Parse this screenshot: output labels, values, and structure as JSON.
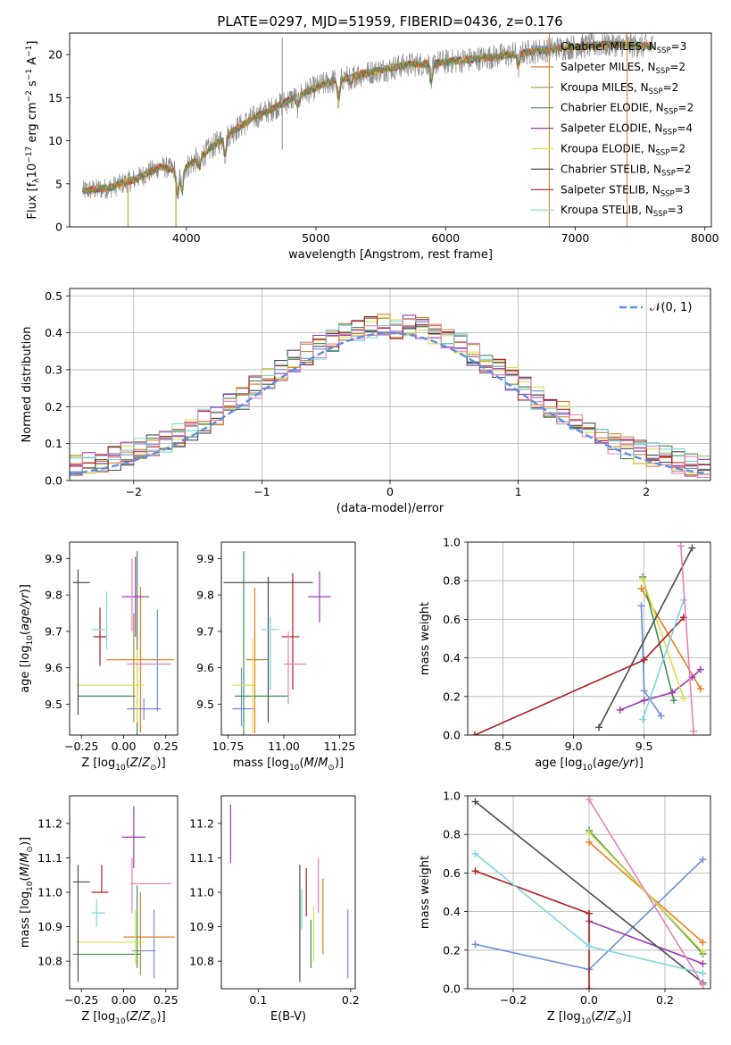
{
  "figure_title": "PLATE=0297, MJD=51959, FIBERID=0436, z=0.176",
  "colors": {
    "Chabrier MILES": "#6b8fd9",
    "Salpeter MILES": "#e87e22",
    "Kroupa MILES": "#b98a3a",
    "Chabrier ELODIE": "#3f8f52",
    "Salpeter ELODIE": "#9a3bb0",
    "Kroupa ELODIE": "#d9e04a",
    "Chabrier STELIB": "#4b4b4b",
    "Salpeter STELIB": "#b01d1d",
    "Kroupa STELIB": "#7ad6e0",
    "pink": "#e681b8",
    "gauss": "#5d8ee0",
    "grid": "#b0b0b0"
  },
  "chart_data": [
    {
      "id": "spectrum",
      "type": "line",
      "title": "PLATE=0297, MJD=51959, FIBERID=0436, z=0.176",
      "xlabel": "wavelength [Angstrom, rest frame]",
      "ylabel": "Flux [fλ10⁻¹⁷ erg cm⁻² s⁻¹ A⁻¹]",
      "xlim": [
        3100,
        8050
      ],
      "ylim": [
        0,
        22.5
      ],
      "xticks": [
        4000,
        5000,
        6000,
        7000,
        8000
      ],
      "yticks": [
        0,
        5,
        10,
        15,
        20
      ],
      "grid": false,
      "legend_position": "top-right",
      "legend": [
        {
          "name": "Chabrier MILES, N_SSP=3",
          "label": "Chabrier MILES, N",
          "sub": "SSP",
          "tail": "=3"
        },
        {
          "name": "Salpeter MILES, N_SSP=2",
          "label": "Salpeter MILES, N",
          "sub": "SSP",
          "tail": "=2"
        },
        {
          "name": "Kroupa MILES, N_SSP=2",
          "label": "Kroupa MILES, N",
          "sub": "SSP",
          "tail": "=2"
        },
        {
          "name": "Chabrier ELODIE, N_SSP=2",
          "label": "Chabrier ELODIE, N",
          "sub": "SSP",
          "tail": "=2"
        },
        {
          "name": "Salpeter ELODIE, N_SSP=4",
          "label": "Salpeter ELODIE, N",
          "sub": "SSP",
          "tail": "=4"
        },
        {
          "name": "Kroupa ELODIE, N_SSP=2",
          "label": "Kroupa ELODIE, N",
          "sub": "SSP",
          "tail": "=2"
        },
        {
          "name": "Chabrier STELIB, N_SSP=2",
          "label": "Chabrier STELIB, N",
          "sub": "SSP",
          "tail": "=2"
        },
        {
          "name": "Salpeter STELIB, N_SSP=3",
          "label": "Salpeter STELIB, N",
          "sub": "SSP",
          "tail": "=3"
        },
        {
          "name": "Kroupa STELIB, N_SSP=3",
          "label": "Kroupa STELIB, N",
          "sub": "SSP",
          "tail": "=3"
        }
      ],
      "continuum_x": [
        3200,
        3400,
        3600,
        3800,
        3950,
        4100,
        4300,
        4500,
        4700,
        4900,
        5100,
        5300,
        5500,
        5700,
        5900,
        6100,
        6300,
        6500,
        6700,
        6900,
        7100,
        7300,
        7500
      ],
      "continuum_y": [
        4.2,
        4.5,
        5.5,
        7.0,
        6.5,
        8.0,
        10.5,
        12.5,
        14.0,
        15.5,
        16.8,
        17.6,
        18.2,
        18.8,
        19.0,
        19.3,
        19.6,
        20.0,
        20.4,
        20.8,
        21.0,
        21.2,
        21.0
      ]
    },
    {
      "id": "residuals",
      "type": "bar",
      "xlabel": "(data-model)/error",
      "ylabel": "Normed distribution",
      "xlim": [
        -2.5,
        2.5
      ],
      "ylim": [
        0,
        0.52
      ],
      "xticks": [
        -2,
        -1,
        0,
        1,
        2
      ],
      "yticks": [
        0.0,
        0.1,
        0.2,
        0.3,
        0.4,
        0.5
      ],
      "grid": true,
      "legend_position": "top-right",
      "reference_curve": "𝒩(0, 1)",
      "bin_width": 0.1,
      "note": "step histograms of residuals for each fit, approximately standard normal"
    },
    {
      "id": "age_vs_Z",
      "type": "scatter",
      "xlabel": "Z [log10(Z/Z⊙)]",
      "ylabel": "age  [log10(age/yr)]",
      "xlim": [
        -0.32,
        0.32
      ],
      "ylim": [
        9.415,
        9.945
      ],
      "xticks": [
        -0.25,
        0.0,
        0.25
      ],
      "yticks": [
        9.5,
        9.6,
        9.7,
        9.8,
        9.9
      ],
      "grid": false,
      "points": [
        {
          "series": "Chabrier MILES",
          "x": 0.12,
          "xerr": 0.1,
          "y": 9.487,
          "yerr": 0.03
        },
        {
          "series": "Chabrier MILES",
          "x": 0.2,
          "xerr": 0.0,
          "y": 9.62,
          "yerr": 0.14
        },
        {
          "series": "Salpeter MILES",
          "x": 0.1,
          "xerr": 0.2,
          "y": 9.622,
          "yerr": 0.2
        },
        {
          "series": "Kroupa MILES",
          "x": 0.06,
          "xerr": 0.0,
          "y": 9.6,
          "yerr": 0.15
        },
        {
          "series": "Chabrier ELODIE",
          "x": -0.1,
          "xerr": 0.17,
          "y": 9.522,
          "yerr": 0.0
        },
        {
          "series": "Chabrier ELODIE",
          "x": 0.08,
          "xerr": 0.0,
          "y": 9.65,
          "yerr": 0.27
        },
        {
          "series": "Salpeter ELODIE",
          "x": 0.07,
          "xerr": 0.08,
          "y": 9.795,
          "yerr": 0.11
        },
        {
          "series": "Kroupa ELODIE",
          "x": -0.08,
          "xerr": 0.2,
          "y": 9.552,
          "yerr": 0.0
        },
        {
          "series": "Kroupa ELODIE",
          "x": 0.08,
          "xerr": 0.0,
          "y": 9.55,
          "yerr": 0.1
        },
        {
          "series": "Chabrier STELIB",
          "x": -0.25,
          "xerr": 0.05,
          "y": 9.834,
          "yerr": 0.0
        },
        {
          "series": "Chabrier STELIB",
          "x": -0.27,
          "xerr": 0.0,
          "y": 9.67,
          "yerr": 0.2
        },
        {
          "series": "Salpeter STELIB",
          "x": -0.14,
          "xerr": 0.04,
          "y": 9.685,
          "yerr": 0.08
        },
        {
          "series": "Kroupa STELIB",
          "x": -0.15,
          "xerr": 0.04,
          "y": 9.705,
          "yerr": 0.0
        },
        {
          "series": "Kroupa STELIB",
          "x": -0.1,
          "xerr": 0.0,
          "y": 9.73,
          "yerr": 0.08
        },
        {
          "series": "pink",
          "x": 0.15,
          "xerr": 0.13,
          "y": 9.61,
          "yerr": 0.0
        },
        {
          "series": "pink",
          "x": 0.05,
          "xerr": 0.0,
          "y": 9.8,
          "yerr": 0.1
        }
      ]
    },
    {
      "id": "age_vs_mass",
      "type": "scatter",
      "xlabel": "mass [log10(M/M⊙)]",
      "ylabel": "",
      "xlim": [
        10.72,
        11.32
      ],
      "ylim": [
        9.415,
        9.945
      ],
      "xticks": [
        10.75,
        11.0,
        11.25
      ],
      "yticks": [
        9.5,
        9.6,
        9.7,
        9.8,
        9.9
      ],
      "grid": false,
      "points": [
        {
          "series": "Chabrier MILES",
          "x": 10.82,
          "xerr": 0.05,
          "y": 9.487,
          "yerr": 0.0
        },
        {
          "series": "Chabrier MILES",
          "x": 10.81,
          "xerr": 0.0,
          "y": 9.52,
          "yerr": 0.08
        },
        {
          "series": "Salpeter MILES",
          "x": 10.87,
          "xerr": 0.0,
          "y": 9.62,
          "yerr": 0.2
        },
        {
          "series": "Kroupa MILES",
          "x": 10.88,
          "xerr": 0.05,
          "y": 9.622,
          "yerr": 0.0
        },
        {
          "series": "Chabrier ELODIE",
          "x": 10.82,
          "xerr": 0.0,
          "y": 9.64,
          "yerr": 0.28
        },
        {
          "series": "Chabrier ELODIE",
          "x": 10.9,
          "xerr": 0.12,
          "y": 9.522,
          "yerr": 0.0
        },
        {
          "series": "Salpeter ELODIE",
          "x": 11.16,
          "xerr": 0.05,
          "y": 9.795,
          "yerr": 0.07
        },
        {
          "series": "Kroupa ELODIE",
          "x": 10.86,
          "xerr": 0.0,
          "y": 9.55,
          "yerr": 0.13
        },
        {
          "series": "Kroupa ELODIE",
          "x": 10.82,
          "xerr": 0.05,
          "y": 9.552,
          "yerr": 0.0
        },
        {
          "series": "Chabrier STELIB",
          "x": 10.93,
          "xerr": 0.2,
          "y": 9.834,
          "yerr": 0.0
        },
        {
          "series": "Chabrier STELIB",
          "x": 10.93,
          "xerr": 0.0,
          "y": 9.65,
          "yerr": 0.2
        },
        {
          "series": "Salpeter STELIB",
          "x": 11.03,
          "xerr": 0.04,
          "y": 9.685,
          "yerr": 0.0
        },
        {
          "series": "Salpeter STELIB",
          "x": 11.04,
          "xerr": 0.0,
          "y": 9.7,
          "yerr": 0.16
        },
        {
          "series": "Kroupa STELIB",
          "x": 10.94,
          "xerr": 0.04,
          "y": 9.705,
          "yerr": 0.0
        },
        {
          "series": "Kroupa STELIB",
          "x": 10.94,
          "xerr": 0.0,
          "y": 9.64,
          "yerr": 0.1
        },
        {
          "series": "pink",
          "x": 11.05,
          "xerr": 0.05,
          "y": 9.61,
          "yerr": 0.0
        },
        {
          "series": "pink",
          "x": 11.02,
          "xerr": 0.0,
          "y": 9.6,
          "yerr": 0.1
        }
      ]
    },
    {
      "id": "weight_vs_age",
      "type": "line",
      "xlabel": "age  [log10(age/yr)]",
      "ylabel": "mass weight",
      "xlim": [
        8.25,
        9.97
      ],
      "ylim": [
        0.0,
        1.0
      ],
      "xticks": [
        8.5,
        9.0,
        9.5
      ],
      "yticks": [
        0.0,
        0.2,
        0.4,
        0.6,
        0.8,
        1.0
      ],
      "grid": true,
      "series": [
        {
          "name": "Chabrier MILES",
          "x": [
            9.48,
            9.5,
            9.62
          ],
          "y": [
            0.67,
            0.23,
            0.1
          ]
        },
        {
          "name": "Salpeter MILES",
          "x": [
            9.48,
            9.9
          ],
          "y": [
            0.76,
            0.24
          ]
        },
        {
          "name": "Chabrier ELODIE",
          "x": [
            9.49,
            9.71
          ],
          "y": [
            0.82,
            0.18
          ]
        },
        {
          "name": "Salpeter ELODIE",
          "x": [
            9.33,
            9.5,
            9.7,
            9.84,
            9.9
          ],
          "y": [
            0.13,
            0.18,
            0.22,
            0.3,
            0.34
          ]
        },
        {
          "name": "Kroupa ELODIE",
          "x": [
            9.49,
            9.78
          ],
          "y": [
            0.81,
            0.19
          ]
        },
        {
          "name": "Chabrier STELIB",
          "x": [
            9.18,
            9.84
          ],
          "y": [
            0.04,
            0.97
          ]
        },
        {
          "name": "Salpeter STELIB",
          "x": [
            8.3,
            9.5,
            9.78
          ],
          "y": [
            0.0,
            0.39,
            0.61
          ]
        },
        {
          "name": "Kroupa STELIB",
          "x": [
            9.49,
            9.78
          ],
          "y": [
            0.08,
            0.7
          ]
        },
        {
          "name": "pink",
          "x": [
            9.76,
            9.85
          ],
          "y": [
            0.98,
            0.02
          ]
        }
      ]
    },
    {
      "id": "mass_vs_Z",
      "type": "scatter",
      "xlabel": "Z [log10(Z/Z⊙)]",
      "ylabel": "mass [log10(M/M⊙)]",
      "xlim": [
        -0.32,
        0.32
      ],
      "ylim": [
        10.72,
        11.28
      ],
      "xticks": [
        -0.25,
        0.0,
        0.25
      ],
      "yticks": [
        10.8,
        10.9,
        11.0,
        11.1,
        11.2
      ],
      "grid": false,
      "points": [
        {
          "series": "Chabrier MILES",
          "x": 0.12,
          "xerr": 0.07,
          "y": 10.83,
          "yerr": 0.0
        },
        {
          "series": "Chabrier MILES",
          "x": 0.18,
          "xerr": 0.0,
          "y": 10.85,
          "yerr": 0.1
        },
        {
          "series": "Salpeter MILES",
          "x": 0.15,
          "xerr": 0.15,
          "y": 10.87,
          "yerr": 0.0
        },
        {
          "series": "Kroupa MILES",
          "x": 0.1,
          "xerr": 0.0,
          "y": 10.88,
          "yerr": 0.12
        },
        {
          "series": "Chabrier ELODIE",
          "x": -0.1,
          "xerr": 0.2,
          "y": 10.82,
          "yerr": 0.0
        },
        {
          "series": "Chabrier ELODIE",
          "x": 0.08,
          "xerr": 0.0,
          "y": 10.9,
          "yerr": 0.12
        },
        {
          "series": "Salpeter ELODIE",
          "x": 0.06,
          "xerr": 0.07,
          "y": 11.16,
          "yerr": 0.09
        },
        {
          "series": "Kroupa ELODIE",
          "x": -0.08,
          "xerr": 0.2,
          "y": 10.855,
          "yerr": 0.0
        },
        {
          "series": "Kroupa ELODIE",
          "x": 0.07,
          "xerr": 0.0,
          "y": 10.87,
          "yerr": 0.08
        },
        {
          "series": "Chabrier STELIB",
          "x": -0.25,
          "xerr": 0.05,
          "y": 11.03,
          "yerr": 0.0
        },
        {
          "series": "Chabrier STELIB",
          "x": -0.27,
          "xerr": 0.0,
          "y": 10.91,
          "yerr": 0.17
        },
        {
          "series": "Salpeter STELIB",
          "x": -0.14,
          "xerr": 0.05,
          "y": 11.0,
          "yerr": 0.0
        },
        {
          "series": "Salpeter STELIB",
          "x": -0.13,
          "xerr": 0.0,
          "y": 11.04,
          "yerr": 0.04
        },
        {
          "series": "Kroupa STELIB",
          "x": -0.15,
          "xerr": 0.04,
          "y": 10.94,
          "yerr": 0.0
        },
        {
          "series": "Kroupa STELIB",
          "x": -0.16,
          "xerr": 0.0,
          "y": 10.94,
          "yerr": 0.04
        },
        {
          "series": "pink",
          "x": 0.16,
          "xerr": 0.12,
          "y": 11.025,
          "yerr": 0.0
        },
        {
          "series": "pink",
          "x": 0.05,
          "xerr": 0.0,
          "y": 11.02,
          "yerr": 0.08
        }
      ]
    },
    {
      "id": "mass_vs_ebv",
      "type": "scatter",
      "xlabel": "E(B-V)",
      "ylabel": "",
      "xlim": [
        0.06,
        0.205
      ],
      "ylim": [
        10.72,
        11.28
      ],
      "xticks": [
        0.1,
        0.2
      ],
      "yticks": [
        10.8,
        10.9,
        11.0,
        11.1,
        11.2
      ],
      "grid": false,
      "points": [
        {
          "series": "Salpeter ELODIE",
          "x": 0.07,
          "y": 11.17,
          "yerr": 0.085
        },
        {
          "series": "Chabrier STELIB",
          "x": 0.145,
          "y": 10.91,
          "yerr": 0.17
        },
        {
          "series": "Salpeter STELIB",
          "x": 0.152,
          "y": 11.0,
          "yerr": 0.07
        },
        {
          "series": "Kroupa STELIB",
          "x": 0.147,
          "y": 10.95,
          "yerr": 0.06
        },
        {
          "series": "Chabrier ELODIE",
          "x": 0.157,
          "y": 10.85,
          "yerr": 0.07
        },
        {
          "series": "Kroupa ELODIE",
          "x": 0.16,
          "y": 10.88,
          "yerr": 0.08
        },
        {
          "series": "pink",
          "x": 0.165,
          "y": 11.02,
          "yerr": 0.08
        },
        {
          "series": "Salpeter MILES",
          "x": 0.17,
          "y": 10.93,
          "yerr": 0.11
        },
        {
          "series": "Chabrier MILES",
          "x": 0.197,
          "y": 10.85,
          "yerr": 0.1
        }
      ]
    },
    {
      "id": "weight_vs_Z",
      "type": "line",
      "xlabel": "Z [log10(Z/Z⊙)]",
      "ylabel": "mass weight",
      "xlim": [
        -0.32,
        0.32
      ],
      "ylim": [
        0.0,
        1.0
      ],
      "xticks": [
        -0.2,
        0.0,
        0.2
      ],
      "yticks": [
        0.0,
        0.2,
        0.4,
        0.6,
        0.8,
        1.0
      ],
      "grid": true,
      "series": [
        {
          "name": "Chabrier MILES",
          "x": [
            -0.3,
            0.0,
            0.3
          ],
          "y": [
            0.23,
            0.1,
            0.67
          ]
        },
        {
          "name": "Salpeter MILES",
          "x": [
            0.0,
            0.3
          ],
          "y": [
            0.76,
            0.24
          ]
        },
        {
          "name": "Chabrier ELODIE",
          "x": [
            0.0,
            0.3
          ],
          "y": [
            0.82,
            0.18
          ]
        },
        {
          "name": "Salpeter ELODIE",
          "x": [
            0.0,
            0.3
          ],
          "y": [
            0.35,
            0.13
          ]
        },
        {
          "name": "Kroupa ELODIE",
          "x": [
            0.0,
            0.3
          ],
          "y": [
            0.81,
            0.19
          ]
        },
        {
          "name": "Chabrier STELIB",
          "x": [
            -0.3,
            0.3
          ],
          "y": [
            0.97,
            0.03
          ]
        },
        {
          "name": "Salpeter STELIB",
          "x": [
            -0.3,
            0.0,
            0.0
          ],
          "y": [
            0.61,
            0.39,
            0.0
          ]
        },
        {
          "name": "Kroupa STELIB",
          "x": [
            -0.3,
            0.0,
            0.3
          ],
          "y": [
            0.7,
            0.22,
            0.08
          ]
        },
        {
          "name": "pink",
          "x": [
            0.0,
            0.3
          ],
          "y": [
            0.98,
            0.02
          ]
        }
      ]
    }
  ]
}
